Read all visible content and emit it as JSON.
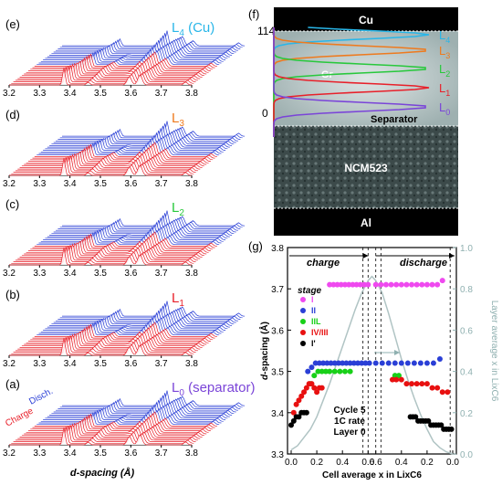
{
  "colors": {
    "charge": "#e8202a",
    "discharge": "#2a3fd6",
    "L4": "#29b6e8",
    "L3": "#ee7a1e",
    "L2": "#28c83c",
    "L1": "#e8202a",
    "L0": "#7a44d8",
    "stage_I": "#ef49ef",
    "stage_II": "#2a3fd6",
    "stage_IIL": "#18d018",
    "stage_IVIII": "#e81010",
    "stage_Iprime": "#000000",
    "layer_curve": "#b0c4c4"
  },
  "left_panels": [
    {
      "tag": "(e)",
      "layer": "L",
      "sub": "4",
      "suffix": " (Cu)",
      "color_key": "L4",
      "show_cd": false
    },
    {
      "tag": "(d)",
      "layer": "L",
      "sub": "3",
      "suffix": "",
      "color_key": "L3",
      "show_cd": false
    },
    {
      "tag": "(c)",
      "layer": "L",
      "sub": "2",
      "suffix": "",
      "color_key": "L2",
      "show_cd": false
    },
    {
      "tag": "(b)",
      "layer": "L",
      "sub": "1",
      "suffix": "",
      "color_key": "L1",
      "show_cd": false
    },
    {
      "tag": "(a)",
      "layer": "L",
      "sub": "0",
      "suffix": " (separator)",
      "color_key": "L0",
      "show_cd": true
    }
  ],
  "axis_ticks": [
    "3.2",
    "3.3",
    "3.4",
    "3.5",
    "3.6",
    "3.7",
    "3.8"
  ],
  "charge_label": "Charge",
  "discharge_label": "Disch.",
  "x_axis_label": "d-spacing (Å)",
  "panel_f": {
    "tag": "(f)",
    "cu_label": "Cu",
    "gr_label": "Gr",
    "separator_label": "Separator",
    "ncm_label": "NCM523",
    "al_label": "Al",
    "y_top": "114",
    "y_zero": "0",
    "layers": [
      {
        "name": "L",
        "sub": "4",
        "color_key": "L4"
      },
      {
        "name": "L",
        "sub": "3",
        "color_key": "L3"
      },
      {
        "name": "L",
        "sub": "2",
        "color_key": "L2"
      },
      {
        "name": "L",
        "sub": "1",
        "color_key": "L1"
      },
      {
        "name": "L",
        "sub": "0",
        "color_key": "L0"
      }
    ]
  },
  "panel_g": {
    "tag": "(g)",
    "charge": "charge",
    "discharge": "discharge",
    "stage_title": "stage",
    "info": [
      "Cycle 5",
      "1C rate",
      "Layer 0"
    ],
    "ylabel_italic": "d",
    "ylabel_rest": "-spacing (Å)",
    "y2label": "Layer average x in LixC6",
    "xlabel": "Cell average x in LixC6",
    "stages": [
      {
        "label": "I",
        "color_key": "stage_I"
      },
      {
        "label": "II",
        "color_key": "stage_II"
      },
      {
        "label": "IIL",
        "color_key": "stage_IIL"
      },
      {
        "label": "IV/III",
        "color_key": "stage_IVIII"
      },
      {
        "label": "I'",
        "color_key": "stage_Iprime"
      }
    ]
  },
  "chart_data": {
    "type": "scatter",
    "xlabel": "Cell average x in LixC6",
    "ylabel": "d-spacing (Å)",
    "y2label": "Layer average x in LixC6",
    "x_ticks_charge": [
      "0.0",
      "0.2",
      "0.4",
      "0.6"
    ],
    "x_ticks_discharge": [
      "0.6",
      "0.4",
      "0.2",
      "0.0"
    ],
    "y_ticks": [
      "3.3",
      "3.4",
      "3.5",
      "3.6",
      "3.7",
      "3.8"
    ],
    "y2_ticks": [
      "0.0",
      "0.2",
      "0.4",
      "0.6",
      "0.8",
      "1.0"
    ],
    "ylim": [
      3.3,
      3.8
    ],
    "y2lim": [
      0.0,
      1.0
    ],
    "series": [
      {
        "name": "I",
        "charge": {
          "x": [
            0.3,
            0.33,
            0.36,
            0.39,
            0.42,
            0.45,
            0.48,
            0.51,
            0.54,
            0.57,
            0.6
          ],
          "y": [
            3.71,
            3.71,
            3.71,
            3.71,
            3.71,
            3.71,
            3.71,
            3.71,
            3.71,
            3.71,
            3.71
          ]
        },
        "discharge": {
          "x": [
            0.6,
            0.56,
            0.52,
            0.48,
            0.44,
            0.4,
            0.36,
            0.32,
            0.28,
            0.24,
            0.2,
            0.16,
            0.12,
            0.08
          ],
          "y": [
            3.71,
            3.71,
            3.71,
            3.71,
            3.71,
            3.71,
            3.71,
            3.71,
            3.71,
            3.71,
            3.71,
            3.71,
            3.71,
            3.72
          ]
        }
      },
      {
        "name": "II",
        "charge": {
          "x": [
            0.13,
            0.16,
            0.19,
            0.22,
            0.25,
            0.28,
            0.31,
            0.34,
            0.37,
            0.4,
            0.43,
            0.46,
            0.49,
            0.52,
            0.55,
            0.58,
            0.61
          ],
          "y": [
            3.5,
            3.51,
            3.52,
            3.52,
            3.52,
            3.52,
            3.52,
            3.52,
            3.52,
            3.52,
            3.52,
            3.52,
            3.52,
            3.52,
            3.52,
            3.52,
            3.52
          ]
        },
        "discharge": {
          "x": [
            0.6,
            0.55,
            0.5,
            0.45,
            0.4,
            0.35,
            0.3,
            0.25,
            0.2,
            0.15,
            0.1
          ],
          "y": [
            3.52,
            3.52,
            3.52,
            3.52,
            3.52,
            3.52,
            3.52,
            3.52,
            3.52,
            3.52,
            3.53
          ]
        }
      },
      {
        "name": "IIL",
        "charge": {
          "x": [
            0.15,
            0.18,
            0.21,
            0.24,
            0.27,
            0.3,
            0.34,
            0.38,
            0.42,
            0.46
          ],
          "y": [
            3.47,
            3.49,
            3.5,
            3.5,
            3.5,
            3.5,
            3.5,
            3.5,
            3.5,
            3.5
          ]
        },
        "discharge": {
          "x": [
            0.45,
            0.42
          ],
          "y": [
            3.49,
            3.49
          ]
        }
      },
      {
        "name": "IV/III",
        "charge": {
          "x": [
            0.02,
            0.04,
            0.06,
            0.08,
            0.1,
            0.12,
            0.14,
            0.16,
            0.18,
            0.2,
            0.22,
            0.24
          ],
          "y": [
            3.4,
            3.42,
            3.43,
            3.44,
            3.45,
            3.46,
            3.47,
            3.47,
            3.46,
            3.45,
            3.46,
            3.46
          ]
        },
        "discharge": {
          "x": [
            0.47,
            0.44,
            0.4,
            0.36,
            0.32,
            0.28,
            0.24,
            0.2,
            0.16,
            0.12,
            0.08,
            0.04
          ],
          "y": [
            3.48,
            3.48,
            3.48,
            3.47,
            3.47,
            3.47,
            3.47,
            3.47,
            3.46,
            3.46,
            3.45,
            3.45
          ]
        }
      },
      {
        "name": "I'",
        "charge": {
          "x": [
            0.0,
            0.02,
            0.04,
            0.06,
            0.08,
            0.1,
            0.12
          ],
          "y": [
            3.37,
            3.38,
            3.39,
            3.39,
            3.4,
            3.4,
            3.4
          ]
        },
        "discharge": {
          "x": [
            0.33,
            0.31,
            0.29,
            0.27,
            0.25,
            0.23,
            0.21,
            0.19,
            0.17,
            0.15,
            0.13,
            0.11,
            0.09,
            0.07,
            0.05,
            0.03,
            0.01
          ],
          "y": [
            3.39,
            3.39,
            3.39,
            3.38,
            3.38,
            3.38,
            3.38,
            3.38,
            3.37,
            3.37,
            3.37,
            3.37,
            3.37,
            3.36,
            3.36,
            3.36,
            3.36
          ]
        }
      }
    ],
    "layer_average_x": {
      "charge": {
        "x": [
          0.0,
          0.05,
          0.1,
          0.15,
          0.2,
          0.25,
          0.3,
          0.35,
          0.4,
          0.45,
          0.5,
          0.55,
          0.6,
          0.63
        ],
        "y": [
          0.02,
          0.04,
          0.08,
          0.12,
          0.18,
          0.26,
          0.34,
          0.43,
          0.52,
          0.61,
          0.7,
          0.78,
          0.84,
          0.86
        ]
      },
      "discharge": {
        "x": [
          0.63,
          0.6,
          0.55,
          0.5,
          0.45,
          0.4,
          0.35,
          0.3,
          0.25,
          0.2,
          0.15,
          0.1,
          0.05,
          0.0
        ],
        "y": [
          0.86,
          0.84,
          0.78,
          0.68,
          0.57,
          0.46,
          0.36,
          0.27,
          0.19,
          0.12,
          0.06,
          0.03,
          0.01,
          0.0
        ]
      }
    }
  }
}
